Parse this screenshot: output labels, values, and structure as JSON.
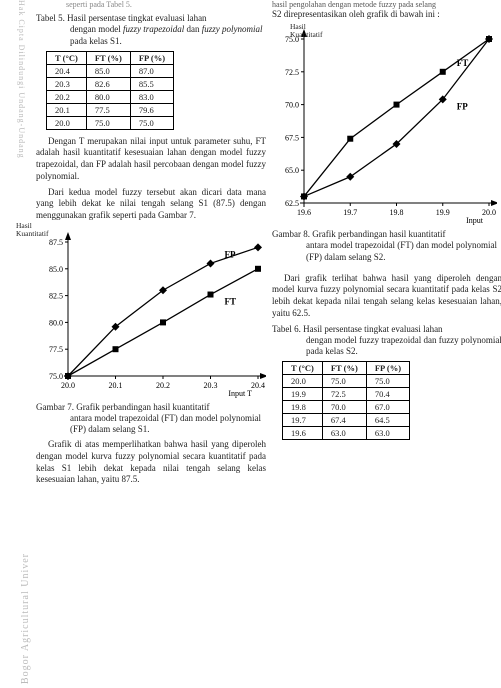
{
  "watermark_left": "Hak Cipta Dilindungi Undang-Undang",
  "watermark_bottom": "Bogor Agricultural Univer",
  "left": {
    "top_cut": "seperti pada Tabel 5.",
    "table5_caption_a": "Tabel 5. Hasil persentase tingkat evaluasi lahan",
    "table5_caption_b": "dengan model ",
    "table5_caption_c": "fuzzy trapezoidal",
    "table5_caption_d": " dan ",
    "table5_caption_e": "fuzzy polynomial",
    "table5_caption_f": " pada kelas S1.",
    "table5": {
      "headers": [
        "T (°C)",
        "FT (%)",
        "FP (%)"
      ],
      "rows": [
        [
          "20.4",
          "85.0",
          "87.0"
        ],
        [
          "20.3",
          "82.6",
          "85.5"
        ],
        [
          "20.2",
          "80.0",
          "83.0"
        ],
        [
          "20.1",
          "77.5",
          "79.6"
        ],
        [
          "20.0",
          "75.0",
          "75.0"
        ]
      ]
    },
    "para1": "Dengan T merupakan nilai input untuk parameter suhu, FT adalah hasil kuantitatif kesesuaian lahan dengan model fuzzy trapezoidal, dan FP adalah hasil percobaan dengan model fuzzy polynomial.",
    "para2": "Dari kedua model fuzzy tersebut akan dicari data mana yang lebih dekat ke nilai tengah selang S1 (87.5) dengan menggunakan grafik seperti pada Gambar 7.",
    "hasil_k_label1": "Hasil",
    "hasil_k_label2": "Kuantitatif",
    "chart7": {
      "y_ticks": [
        "87.5",
        "85.0",
        "82.5",
        "80.0",
        "77.5",
        "75.0"
      ],
      "x_ticks": [
        "20.0",
        "20.1",
        "20.2",
        "20.3",
        "20.4"
      ],
      "x_label": "Input T",
      "series": [
        {
          "name": "FP",
          "label": "FP",
          "color": "#000",
          "marker": "diamond",
          "points": [
            [
              20.0,
              75.0
            ],
            [
              20.1,
              79.6
            ],
            [
              20.2,
              83.0
            ],
            [
              20.3,
              85.5
            ],
            [
              20.4,
              87.0
            ]
          ]
        },
        {
          "name": "FT",
          "label": "FT",
          "color": "#000",
          "marker": "square",
          "points": [
            [
              20.0,
              75.0
            ],
            [
              20.1,
              77.5
            ],
            [
              20.2,
              80.0
            ],
            [
              20.3,
              82.6
            ],
            [
              20.4,
              85.0
            ]
          ]
        }
      ]
    },
    "fig7_caption_a": "Gambar 7. Grafik perbandingan hasil kuantitatif",
    "fig7_caption_b": "antara model trapezoidal (FT) dan model polynomial (FP) dalam selang S1.",
    "para3": "Grafik di atas memperlihatkan bahwa hasil yang diperoleh dengan model kurva fuzzy polynomial secara kuantitatif pada kelas S1 lebih dekat kepada nilai tengah selang kelas kesesuaian lahan, yaitu 87.5."
  },
  "right": {
    "top_cut": "hasil pengolahan dengan metode fuzzy pada selang",
    "top_cut2": "S2 direpresentasikan oleh grafik di bawah ini :",
    "hasil_k_label1": "Hasil",
    "hasil_k_label2": "Kuantitatif",
    "chart8": {
      "y_ticks": [
        "75.0",
        "72.5",
        "70.0",
        "67.5",
        "65.0",
        "62.5"
      ],
      "x_ticks": [
        "19.6",
        "19.7",
        "19.8",
        "19.9",
        "20.0"
      ],
      "x_label": "Input",
      "series": [
        {
          "name": "FT",
          "label": "FT",
          "color": "#000",
          "marker": "square",
          "points": [
            [
              19.6,
              63.0
            ],
            [
              19.7,
              67.4
            ],
            [
              19.8,
              70.0
            ],
            [
              19.9,
              72.5
            ],
            [
              20.0,
              75.0
            ]
          ]
        },
        {
          "name": "FP",
          "label": "FP",
          "color": "#000",
          "marker": "diamond",
          "points": [
            [
              19.6,
              63.0
            ],
            [
              19.7,
              64.5
            ],
            [
              19.8,
              67.0
            ],
            [
              19.9,
              70.4
            ],
            [
              20.0,
              75.0
            ]
          ]
        }
      ]
    },
    "fig8_caption_a": "Gambar 8. Grafik perbandingan hasil kuantitatif",
    "fig8_caption_b": "antara model trapezoidal (FT) dan model polynomial (FP) dalam selang S2.",
    "para1": "Dari grafik terlihat bahwa hasil yang diperoleh dengan model kurva fuzzy polynomial secara kuantitatif pada kelas S2 lebih dekat kepada nilai tengah selang kelas kesesuaian lahan, yaitu 62.5.",
    "table6_caption_a": "Tabel 6. Hasil persentase tingkat evaluasi lahan",
    "table6_caption_b": "dengan model fuzzy trapezoidal dan fuzzy polynomial pada kelas S2.",
    "table6": {
      "headers": [
        "T (°C)",
        "FT (%)",
        "FP (%)"
      ],
      "rows": [
        [
          "20.0",
          "75.0",
          "75.0"
        ],
        [
          "19.9",
          "72.5",
          "70.4"
        ],
        [
          "19.8",
          "70.0",
          "67.0"
        ],
        [
          "19.7",
          "67.4",
          "64.5"
        ],
        [
          "19.6",
          "63.0",
          "63.0"
        ]
      ]
    }
  }
}
